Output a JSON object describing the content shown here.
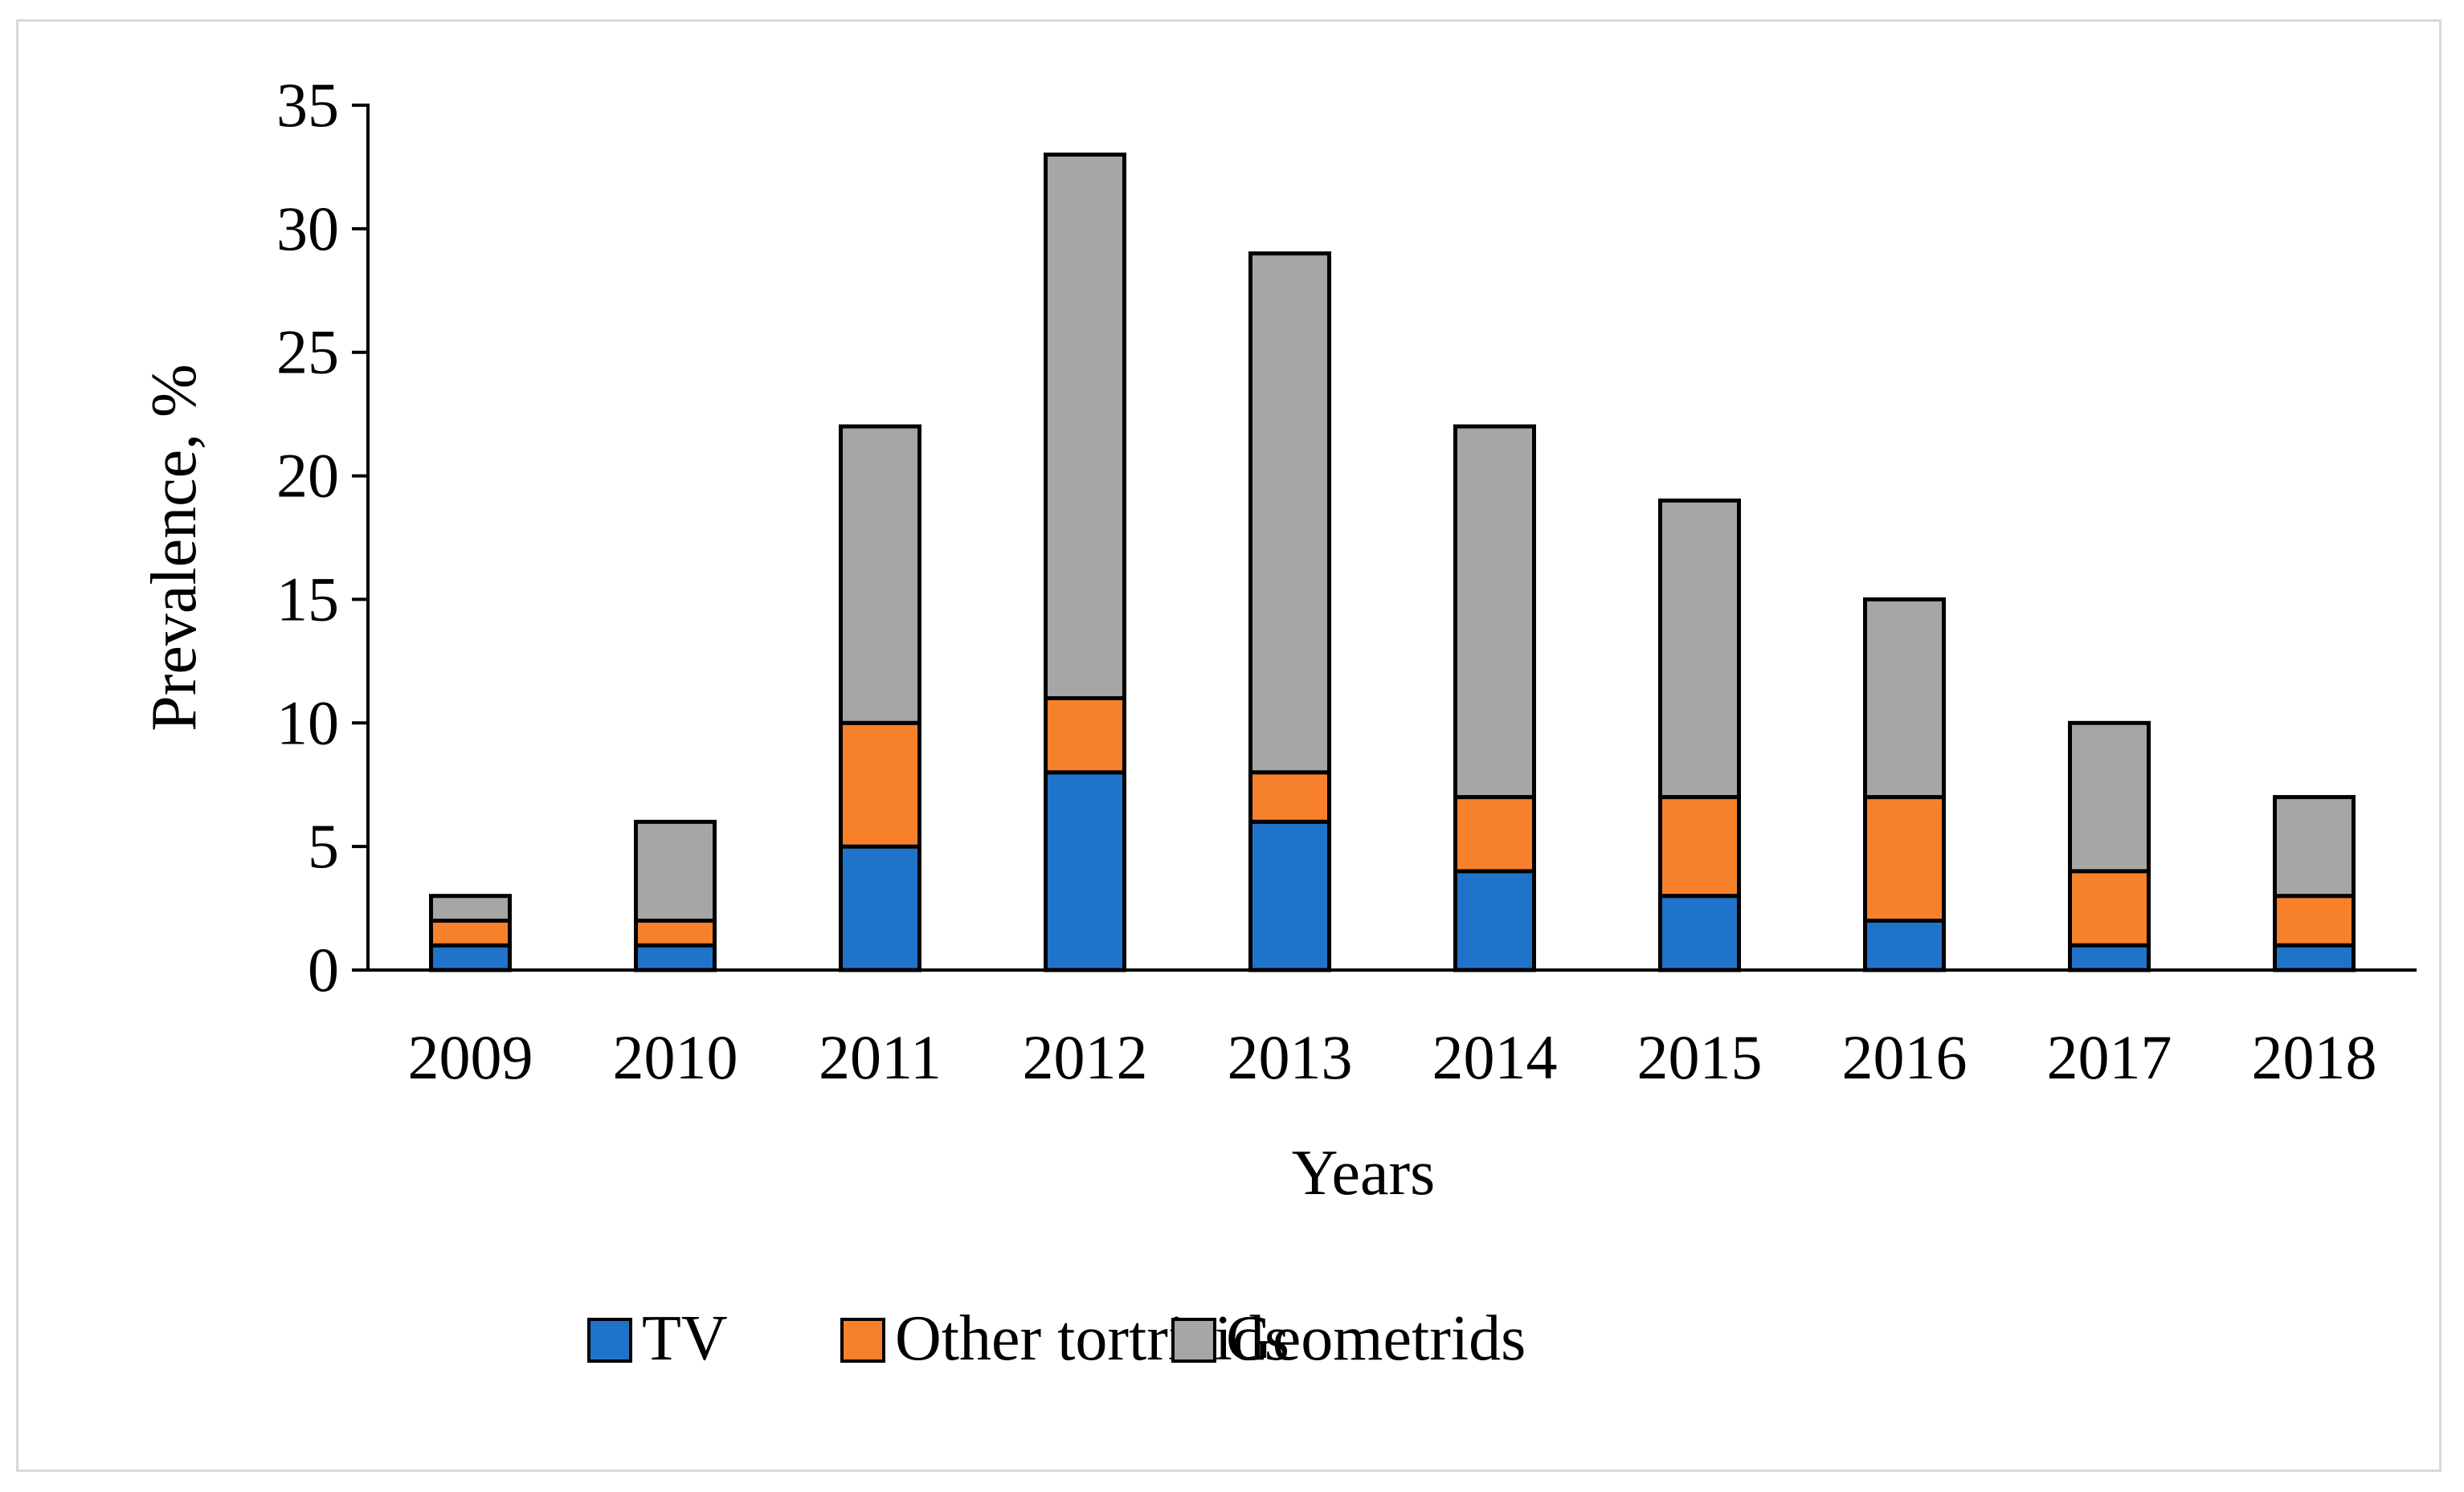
{
  "chart_data": {
    "type": "bar",
    "stacked": true,
    "title": "",
    "xlabel": "Years",
    "ylabel": "Prevalence, %",
    "ylim": [
      0,
      35
    ],
    "yticks": [
      0,
      5,
      10,
      15,
      20,
      25,
      30,
      35
    ],
    "categories": [
      "2009",
      "2010",
      "2011",
      "2012",
      "2013",
      "2014",
      "2015",
      "2016",
      "2017",
      "2018"
    ],
    "series": [
      {
        "name": "TV",
        "color": "#1f74c9",
        "values": [
          1,
          1,
          5,
          8,
          6,
          4,
          3,
          2,
          1,
          1
        ]
      },
      {
        "name": "Other tortricids",
        "color": "#f7812a",
        "values": [
          1,
          1,
          5,
          3,
          2,
          3,
          4,
          5,
          3,
          2
        ]
      },
      {
        "name": "Geometrids",
        "color": "#a6a6a6",
        "values": [
          1,
          4,
          12,
          22,
          21,
          15,
          12,
          8,
          6,
          4
        ]
      }
    ],
    "legend_position": "bottom",
    "grid": false
  }
}
